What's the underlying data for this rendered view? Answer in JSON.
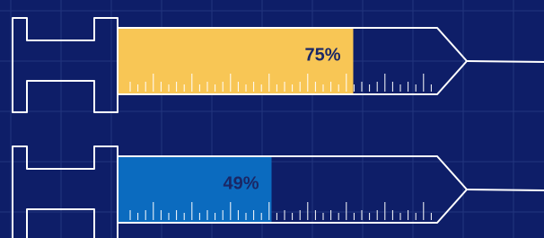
{
  "chart_data": {
    "type": "bar",
    "values": [
      75,
      49
    ],
    "value_labels": [
      "75%",
      "49%"
    ],
    "colors": [
      "#f8c655",
      "#0b6bbf"
    ],
    "xlim": [
      0,
      100
    ]
  }
}
